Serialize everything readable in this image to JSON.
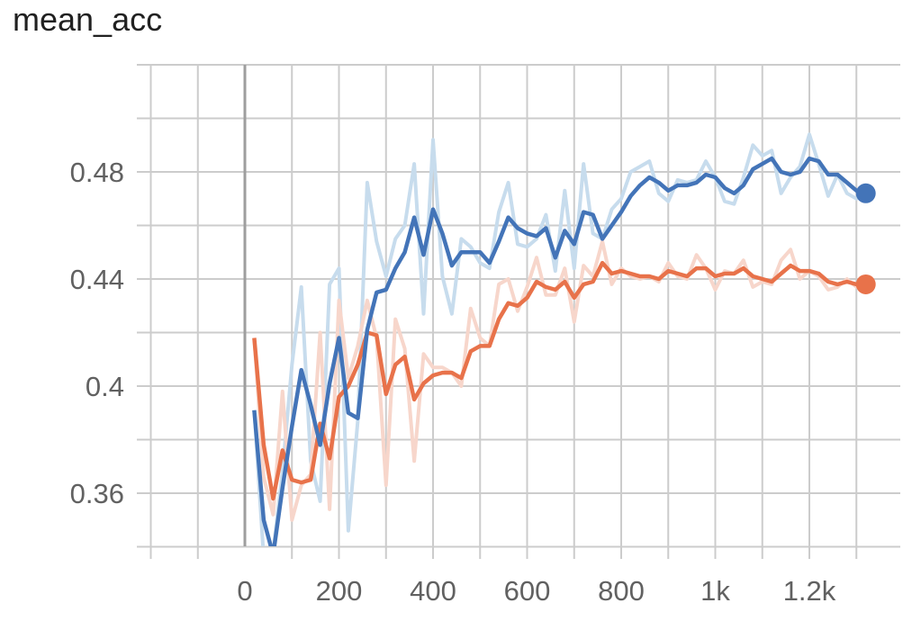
{
  "chart_data": {
    "type": "line",
    "title": "mean_acc",
    "xlabel": "",
    "ylabel": "",
    "xlim": [
      -200,
      1400
    ],
    "ylim": [
      0.34,
      0.52
    ],
    "grid": true,
    "x_ticks": [
      {
        "value": 0,
        "label": "0"
      },
      {
        "value": 200,
        "label": "200"
      },
      {
        "value": 400,
        "label": "400"
      },
      {
        "value": 600,
        "label": "600"
      },
      {
        "value": 800,
        "label": "800"
      },
      {
        "value": 1000,
        "label": "1k"
      },
      {
        "value": 1200,
        "label": "1.2k"
      }
    ],
    "y_ticks": [
      {
        "value": 0.36,
        "label": "0.36"
      },
      {
        "value": 0.4,
        "label": "0.4"
      },
      {
        "value": 0.44,
        "label": "0.44"
      },
      {
        "value": 0.48,
        "label": "0.48"
      }
    ],
    "colors": {
      "blue": "#4374b8",
      "blue_raw": "#c7dced",
      "orange": "#e8724a",
      "orange_raw": "#f7d6cb",
      "grid": "#cccccc",
      "zero_line": "#9e9e9e"
    },
    "series": [
      {
        "color": "blue",
        "x": [
          20,
          40,
          60,
          80,
          100,
          120,
          140,
          160,
          180,
          200,
          220,
          240,
          260,
          280,
          300,
          320,
          340,
          360,
          380,
          400,
          420,
          440,
          460,
          480,
          500,
          520,
          540,
          560,
          580,
          600,
          620,
          640,
          660,
          680,
          700,
          720,
          740,
          760,
          780,
          800,
          820,
          840,
          860,
          880,
          900,
          920,
          940,
          960,
          980,
          1000,
          1020,
          1040,
          1060,
          1080,
          1100,
          1120,
          1140,
          1160,
          1180,
          1200,
          1220,
          1240,
          1260,
          1280,
          1300,
          1320
        ],
        "smoothed": [
          0.391,
          0.35,
          0.337,
          0.362,
          0.385,
          0.406,
          0.393,
          0.378,
          0.401,
          0.418,
          0.39,
          0.388,
          0.421,
          0.435,
          0.436,
          0.444,
          0.45,
          0.463,
          0.449,
          0.466,
          0.457,
          0.445,
          0.45,
          0.45,
          0.45,
          0.446,
          0.454,
          0.463,
          0.459,
          0.457,
          0.456,
          0.459,
          0.448,
          0.458,
          0.453,
          0.465,
          0.464,
          0.455,
          0.46,
          0.465,
          0.471,
          0.475,
          0.478,
          0.476,
          0.473,
          0.475,
          0.475,
          0.476,
          0.479,
          0.478,
          0.474,
          0.472,
          0.475,
          0.481,
          0.483,
          0.485,
          0.48,
          0.479,
          0.48,
          0.485,
          0.484,
          0.479,
          0.479,
          0.476,
          0.473,
          0.472
        ],
        "raw": [
          0.391,
          0.336,
          0.338,
          0.368,
          0.408,
          0.437,
          0.372,
          0.357,
          0.438,
          0.444,
          0.346,
          0.387,
          0.476,
          0.454,
          0.441,
          0.455,
          0.46,
          0.483,
          0.427,
          0.492,
          0.441,
          0.427,
          0.455,
          0.452,
          0.446,
          0.444,
          0.465,
          0.476,
          0.453,
          0.452,
          0.455,
          0.464,
          0.443,
          0.473,
          0.444,
          0.483,
          0.457,
          0.455,
          0.466,
          0.47,
          0.48,
          0.482,
          0.484,
          0.472,
          0.469,
          0.477,
          0.476,
          0.477,
          0.484,
          0.478,
          0.469,
          0.468,
          0.478,
          0.49,
          0.486,
          0.488,
          0.472,
          0.478,
          0.482,
          0.494,
          0.483,
          0.471,
          0.479,
          0.472,
          0.47,
          0.472
        ]
      },
      {
        "color": "orange",
        "x": [
          20,
          40,
          60,
          80,
          100,
          120,
          140,
          160,
          180,
          200,
          220,
          240,
          260,
          280,
          300,
          320,
          340,
          360,
          380,
          400,
          420,
          440,
          460,
          480,
          500,
          520,
          540,
          560,
          580,
          600,
          620,
          640,
          660,
          680,
          700,
          720,
          740,
          760,
          780,
          800,
          820,
          840,
          860,
          880,
          900,
          920,
          940,
          960,
          980,
          1000,
          1020,
          1040,
          1060,
          1080,
          1100,
          1120,
          1140,
          1160,
          1180,
          1200,
          1220,
          1240,
          1260,
          1280,
          1300,
          1320
        ],
        "smoothed": [
          0.418,
          0.378,
          0.358,
          0.376,
          0.365,
          0.364,
          0.365,
          0.386,
          0.373,
          0.396,
          0.4,
          0.408,
          0.42,
          0.419,
          0.397,
          0.408,
          0.411,
          0.395,
          0.401,
          0.404,
          0.405,
          0.405,
          0.403,
          0.413,
          0.415,
          0.415,
          0.425,
          0.431,
          0.43,
          0.433,
          0.439,
          0.437,
          0.436,
          0.439,
          0.433,
          0.438,
          0.439,
          0.446,
          0.442,
          0.443,
          0.442,
          0.441,
          0.441,
          0.44,
          0.443,
          0.442,
          0.441,
          0.444,
          0.444,
          0.441,
          0.442,
          0.442,
          0.444,
          0.441,
          0.44,
          0.439,
          0.442,
          0.445,
          0.443,
          0.443,
          0.442,
          0.439,
          0.438,
          0.439,
          0.438,
          0.438
        ],
        "raw": [
          0.418,
          0.366,
          0.352,
          0.398,
          0.35,
          0.363,
          0.367,
          0.42,
          0.354,
          0.432,
          0.403,
          0.415,
          0.432,
          0.418,
          0.363,
          0.425,
          0.414,
          0.372,
          0.412,
          0.407,
          0.407,
          0.405,
          0.4,
          0.429,
          0.418,
          0.415,
          0.438,
          0.44,
          0.428,
          0.437,
          0.448,
          0.434,
          0.434,
          0.444,
          0.424,
          0.445,
          0.441,
          0.454,
          0.438,
          0.444,
          0.441,
          0.44,
          0.441,
          0.439,
          0.446,
          0.441,
          0.44,
          0.449,
          0.444,
          0.436,
          0.443,
          0.442,
          0.447,
          0.437,
          0.439,
          0.438,
          0.447,
          0.451,
          0.44,
          0.443,
          0.441,
          0.436,
          0.437,
          0.44,
          0.437,
          0.438
        ]
      }
    ]
  }
}
